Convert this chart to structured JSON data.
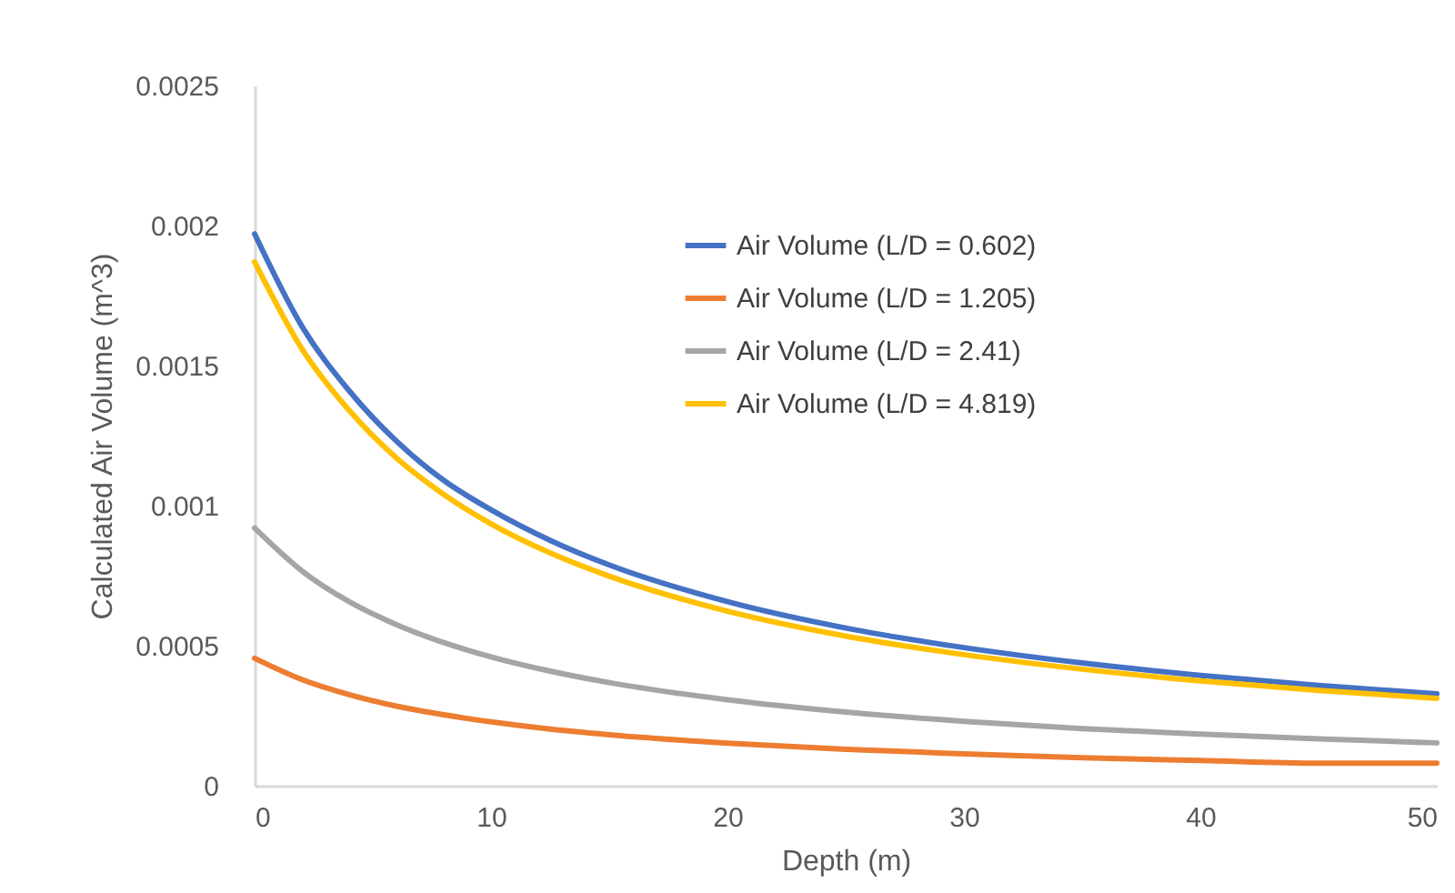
{
  "chart_data": {
    "type": "line",
    "xlabel": "Depth (m)",
    "ylabel": "Calculated Air Volume (m^3)",
    "x": [
      0,
      2,
      4,
      6,
      8,
      10,
      12.5,
      15,
      20,
      25,
      30,
      35,
      40,
      45,
      50
    ],
    "series": [
      {
        "name": "Air Volume (L/D = 0.602)",
        "color": "#4472c4",
        "values": [
          0.00197,
          0.00164,
          0.00141,
          0.00123,
          0.00109,
          0.000985,
          0.000876,
          0.000788,
          0.000657,
          0.000563,
          0.000493,
          0.000438,
          0.000394,
          0.000358,
          0.000328
        ]
      },
      {
        "name": "Air Volume (L/D = 1.205)",
        "color": "#ed7d31",
        "values": [
          0.000455,
          0.000379,
          0.000325,
          0.000284,
          0.000253,
          0.000228,
          0.000202,
          0.000182,
          0.000152,
          0.00013,
          0.000114,
          0.0001,
          9e-05,
          8e-05,
          8e-05
        ]
      },
      {
        "name": "Air Volume (L/D = 2.41)",
        "color": "#a5a5a5",
        "values": [
          0.00092,
          0.000767,
          0.000657,
          0.000575,
          0.000511,
          0.00046,
          0.000409,
          0.000368,
          0.000307,
          0.000263,
          0.00023,
          0.000204,
          0.000184,
          0.000167,
          0.000153
        ]
      },
      {
        "name": "Air Volume (L/D = 4.819)",
        "color": "#ffc000",
        "values": [
          0.00187,
          0.00156,
          0.00134,
          0.00117,
          0.00104,
          0.000935,
          0.000831,
          0.000748,
          0.000623,
          0.000534,
          0.000468,
          0.000416,
          0.000374,
          0.00034,
          0.000312
        ]
      }
    ],
    "xlim": [
      0,
      50
    ],
    "xticks": [
      0,
      10,
      20,
      30,
      40,
      50
    ],
    "ylim": [
      0,
      0.0025
    ],
    "yticks": [
      0,
      0.0005,
      0.001,
      0.0015,
      0.002,
      0.0025
    ],
    "legend": "top right",
    "marker": "none",
    "line_style": "solid"
  }
}
